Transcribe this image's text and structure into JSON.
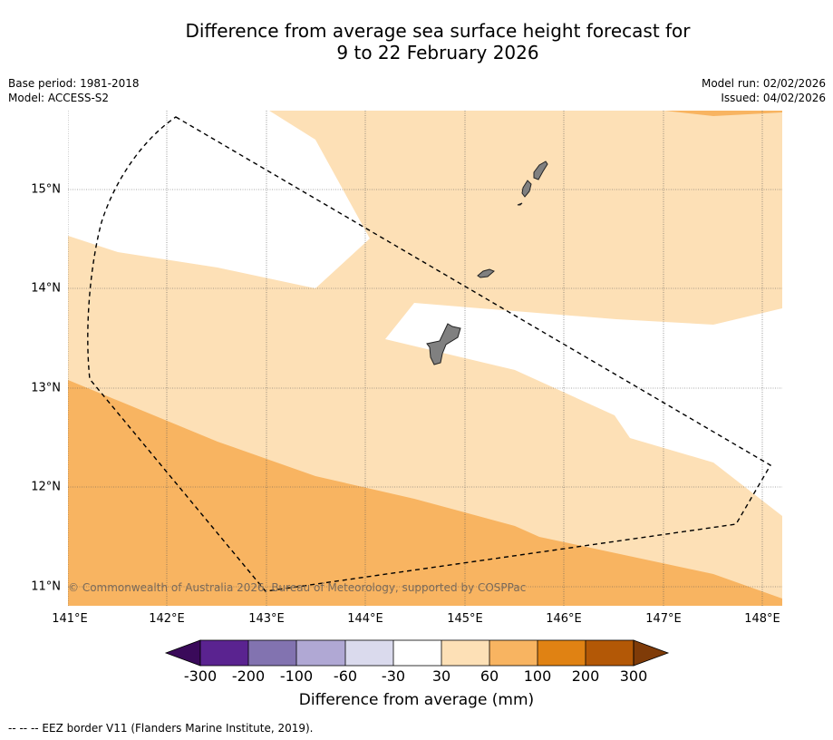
{
  "title": {
    "line1": "Difference from average sea surface height forecast for",
    "line2": "9 to 22 February 2026"
  },
  "meta": {
    "base_period": "Base period: 1981-2018",
    "model": "Model: ACCESS-S2",
    "model_run": "Model run: 02/02/2026",
    "issued": "Issued: 04/02/2026"
  },
  "map": {
    "lon_range": [
      141.0,
      148.2
    ],
    "lat_range": [
      10.8,
      15.8
    ],
    "lon_ticks": [
      "141°E",
      "142°E",
      "143°E",
      "144°E",
      "145°E",
      "146°E",
      "147°E",
      "148°E"
    ],
    "lat_ticks": [
      "15°N",
      "14°N",
      "13°N",
      "12°N",
      "11°N"
    ],
    "copyright": "© Commonwealth of Australia 2026, Bureau of Meteorology, supported by COSPPac",
    "land_color": "#808080",
    "eez_border": "dashed"
  },
  "colorbar": {
    "label": "Difference from average (mm)",
    "ticks": [
      "-300",
      "-200",
      "-100",
      "-60",
      "-30",
      "30",
      "60",
      "100",
      "200",
      "300"
    ],
    "colors": [
      "#3a0a5a",
      "#5a2390",
      "#8273b0",
      "#b0a8d4",
      "#dadaed",
      "#ffffff",
      "#fde0b6",
      "#f8b461",
      "#e08213",
      "#b35806",
      "#7f3b08"
    ]
  },
  "footnote": "--  --  -- EEZ border V11 (Flanders Marine Institute, 2019)."
}
